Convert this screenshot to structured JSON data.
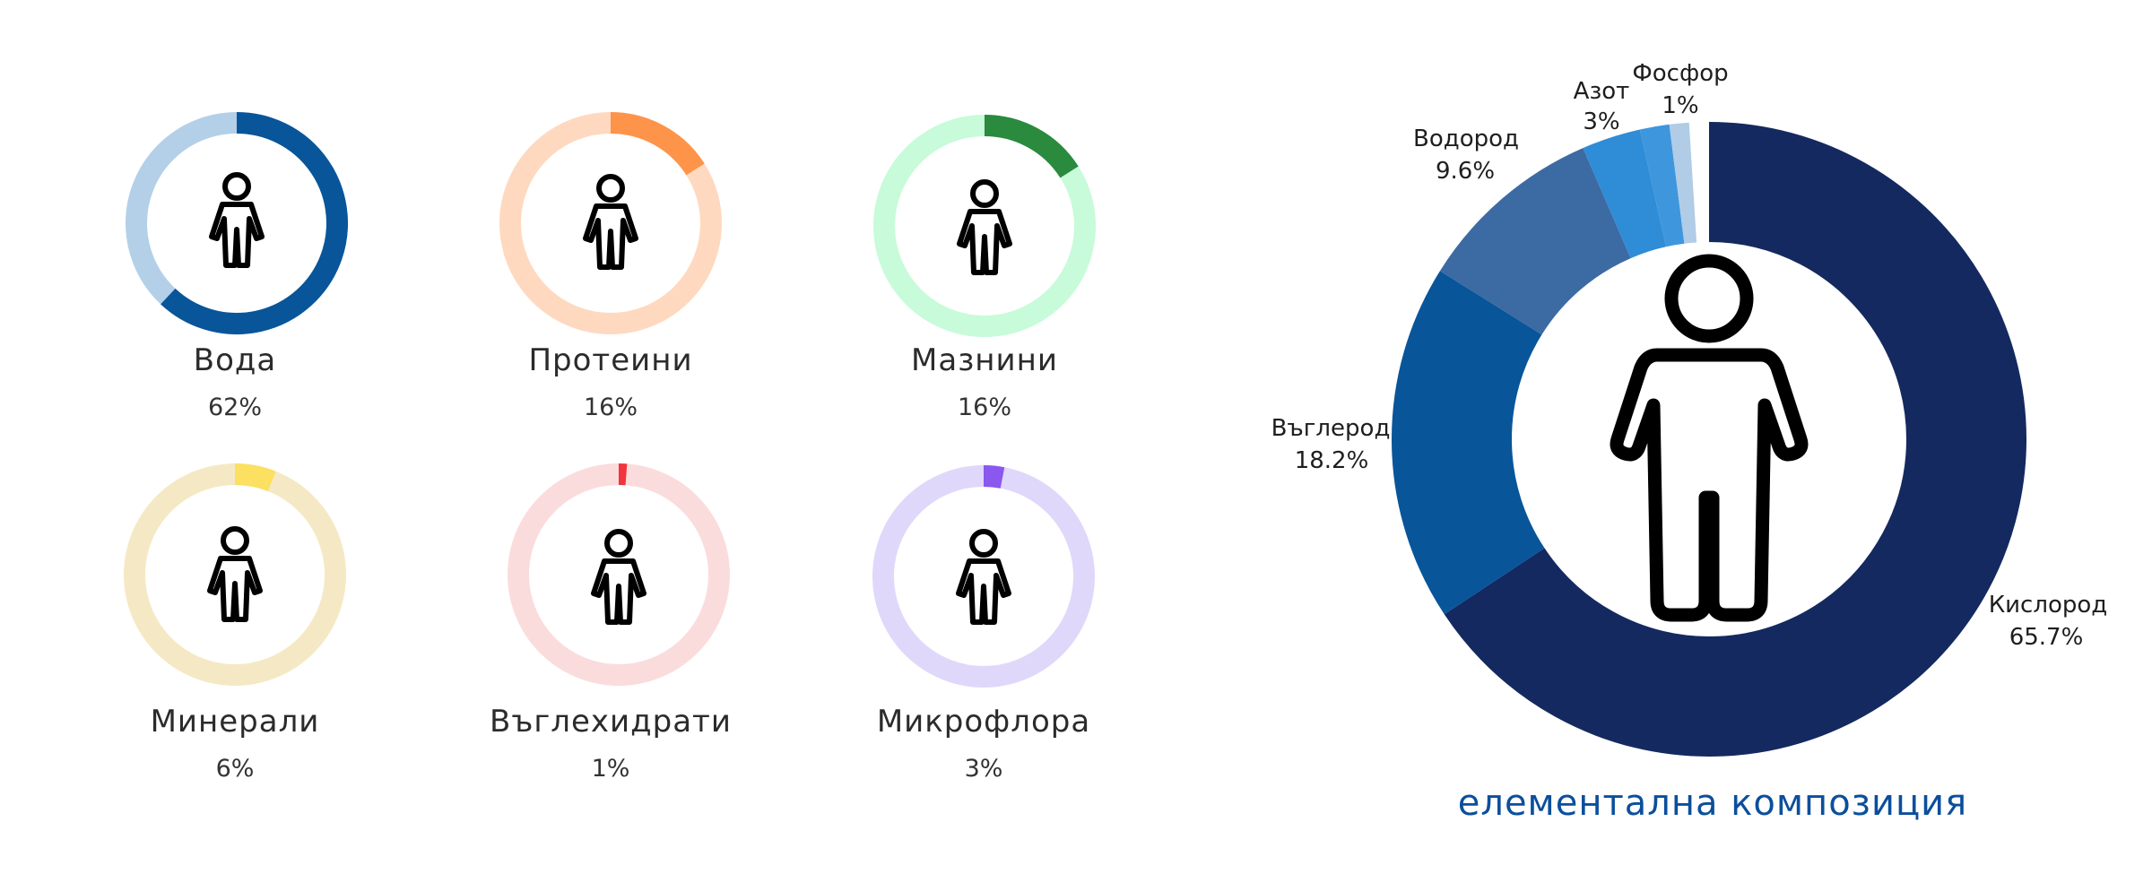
{
  "chart_data": [
    {
      "type": "pie",
      "variant": "donut",
      "label": "Вода",
      "value_label": "62%",
      "value": 62,
      "colors": {
        "fill": "#08559a",
        "track": "#b4d0e8"
      }
    },
    {
      "type": "pie",
      "variant": "donut",
      "label": "Протеини",
      "value_label": "16%",
      "value": 16,
      "colors": {
        "fill": "#fd944a",
        "track": "#fed9c0"
      }
    },
    {
      "type": "pie",
      "variant": "donut",
      "label": "Мазнини",
      "value_label": "16%",
      "value": 16,
      "colors": {
        "fill": "#2a8a3e",
        "track": "#c8fbd9"
      }
    },
    {
      "type": "pie",
      "variant": "donut",
      "label": "Минерали",
      "value_label": "6%",
      "value": 6,
      "colors": {
        "fill": "#fbe061",
        "track": "#f5e9c5"
      }
    },
    {
      "type": "pie",
      "variant": "donut",
      "label": "Въглехидрати",
      "value_label": "1%",
      "value": 1,
      "colors": {
        "fill": "#f0353c",
        "track": "#fbdcdd"
      }
    },
    {
      "type": "pie",
      "variant": "donut",
      "label": "Микрофлора",
      "value_label": "3%",
      "value": 3,
      "colors": {
        "fill": "#8a57ef",
        "track": "#e0d8fa"
      }
    },
    {
      "type": "pie",
      "variant": "donut",
      "title": "елементална композиция",
      "title_color": "#0b4f9c",
      "slices": [
        {
          "label": "Кислород",
          "value_label": "65.7%",
          "value": 65.7,
          "color": "#14295f"
        },
        {
          "label": "Въглерод",
          "value_label": "18.2%",
          "value": 18.2,
          "color": "#08559a"
        },
        {
          "label": "Водород",
          "value_label": "9.6%",
          "value": 9.6,
          "color": "#3c6aa3"
        },
        {
          "label": "Азот",
          "value_label": "3%",
          "value": 3,
          "color": "#2f8cd6"
        },
        {
          "label": "Азот",
          "value_label": "",
          "value": 1.5,
          "color": "#3e96dd"
        },
        {
          "label": "Фосфор",
          "value_label": "1%",
          "value": 1,
          "color": "#b0cce6"
        },
        {
          "label": "",
          "value_label": "",
          "value": 1,
          "color": "#ffffff"
        }
      ]
    }
  ],
  "icons": {
    "person": "person-icon"
  }
}
